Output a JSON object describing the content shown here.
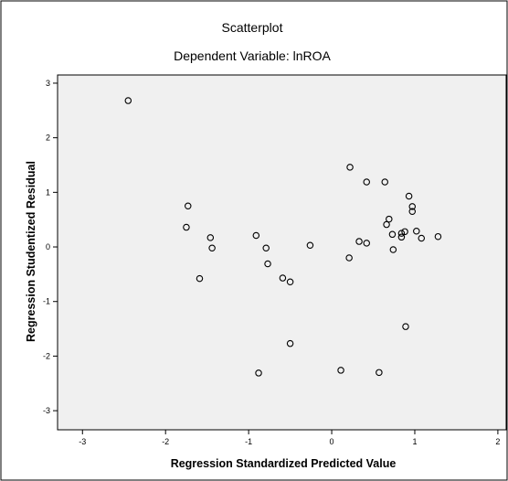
{
  "chart_data": {
    "type": "scatter",
    "title": "Scatterplot",
    "subtitle": "Dependent Variable: lnROA",
    "xlabel": "Regression Standardized Predicted Value",
    "ylabel": "Regression Studentized Residual",
    "xlim": [
      -3.3,
      2.1
    ],
    "ylim": [
      -3.35,
      3.15
    ],
    "xticks": [
      -3,
      -2,
      -1,
      0,
      1,
      2
    ],
    "yticks": [
      3,
      2,
      1,
      0,
      -1,
      -2,
      -3
    ],
    "grid": false,
    "legend": "none",
    "colors": {
      "plot_background": "#f0f0f0",
      "outer_background": "#ffffff",
      "marker": "#000000"
    },
    "points": [
      {
        "x": -2.45,
        "y": 2.68
      },
      {
        "x": -1.73,
        "y": 0.75
      },
      {
        "x": -1.75,
        "y": 0.36
      },
      {
        "x": -1.46,
        "y": 0.17
      },
      {
        "x": -1.44,
        "y": -0.02
      },
      {
        "x": -1.59,
        "y": -0.58
      },
      {
        "x": -0.91,
        "y": 0.21
      },
      {
        "x": -0.79,
        "y": -0.02
      },
      {
        "x": -0.77,
        "y": -0.31
      },
      {
        "x": -0.59,
        "y": -0.57
      },
      {
        "x": -0.5,
        "y": -0.64
      },
      {
        "x": -0.26,
        "y": 0.03
      },
      {
        "x": -0.5,
        "y": -1.77
      },
      {
        "x": -0.88,
        "y": -2.31
      },
      {
        "x": 0.22,
        "y": 1.46
      },
      {
        "x": 0.42,
        "y": 1.19
      },
      {
        "x": 0.64,
        "y": 1.19
      },
      {
        "x": 0.21,
        "y": -0.2
      },
      {
        "x": 0.33,
        "y": 0.1
      },
      {
        "x": 0.42,
        "y": 0.07
      },
      {
        "x": 0.11,
        "y": -2.26
      },
      {
        "x": 0.57,
        "y": -2.3
      },
      {
        "x": 0.93,
        "y": 0.93
      },
      {
        "x": 0.97,
        "y": 0.74
      },
      {
        "x": 0.97,
        "y": 0.65
      },
      {
        "x": 0.69,
        "y": 0.51
      },
      {
        "x": 0.66,
        "y": 0.41
      },
      {
        "x": 0.73,
        "y": 0.23
      },
      {
        "x": 0.84,
        "y": 0.25
      },
      {
        "x": 0.88,
        "y": 0.28
      },
      {
        "x": 0.84,
        "y": 0.18
      },
      {
        "x": 0.74,
        "y": -0.05
      },
      {
        "x": 1.02,
        "y": 0.29
      },
      {
        "x": 1.08,
        "y": 0.16
      },
      {
        "x": 1.28,
        "y": 0.19
      },
      {
        "x": 0.89,
        "y": -1.46
      }
    ]
  }
}
